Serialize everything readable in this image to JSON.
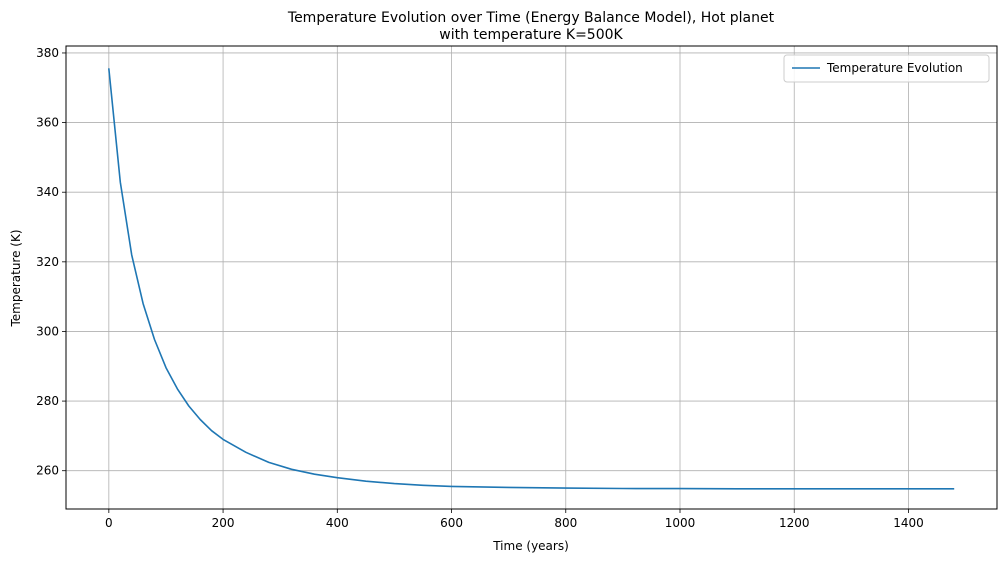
{
  "chart_data": {
    "type": "line",
    "title_line1": "Temperature Evolution over Time (Energy Balance Model), Hot planet",
    "title_line2": "with temperature K=500K",
    "xlabel": "Time (years)",
    "ylabel": "Temperature (K)",
    "xlim": [
      -75,
      1555
    ],
    "ylim": [
      249,
      382
    ],
    "xticks": [
      0,
      200,
      400,
      600,
      800,
      1000,
      1200,
      1400
    ],
    "yticks": [
      260,
      280,
      300,
      320,
      340,
      360,
      380
    ],
    "grid": true,
    "legend_position": "top-right",
    "colors": {
      "line": "#1f77b4",
      "grid": "#b0b0b0"
    },
    "series": [
      {
        "name": "Temperature Evolution",
        "x": [
          0,
          20,
          40,
          60,
          80,
          100,
          120,
          140,
          160,
          180,
          200,
          240,
          280,
          320,
          360,
          400,
          450,
          500,
          550,
          600,
          700,
          800,
          900,
          1000,
          1100,
          1200,
          1300,
          1400,
          1480
        ],
        "y": [
          375.6,
          342.9,
          322.0,
          308.0,
          297.7,
          289.6,
          283.5,
          278.6,
          274.7,
          271.5,
          269.0,
          265.3,
          262.4,
          260.4,
          259.0,
          258.0,
          257.0,
          256.3,
          255.8,
          255.5,
          255.2,
          255.0,
          254.9,
          254.85,
          254.8,
          254.8,
          254.8,
          254.8,
          254.8
        ]
      }
    ]
  }
}
